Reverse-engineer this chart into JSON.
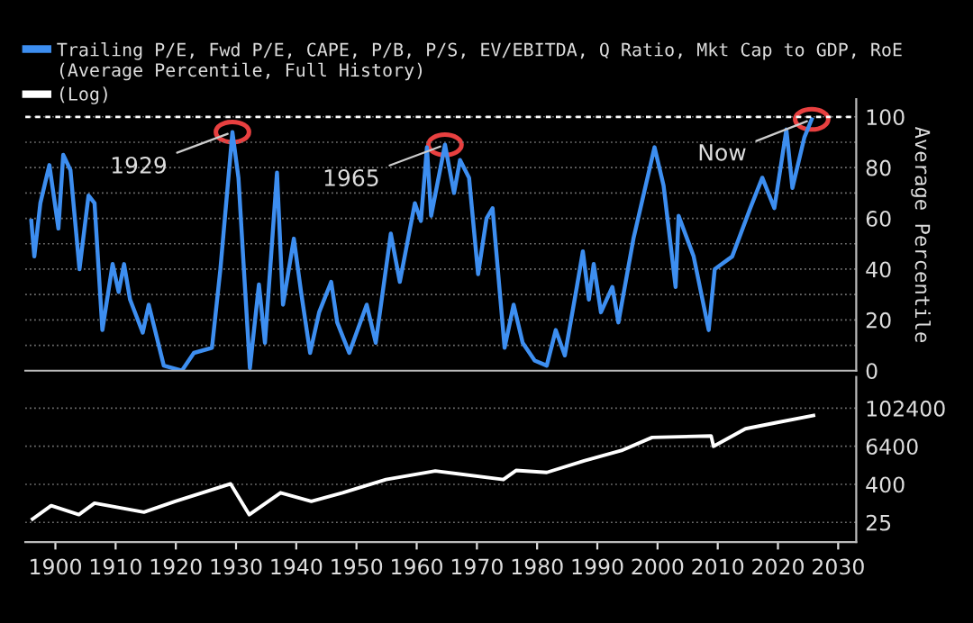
{
  "chart_data": [
    {
      "type": "line",
      "ylabel": "Average Percentile",
      "legend": "top left",
      "xlim": [
        1895,
        2033
      ],
      "ylim": [
        0,
        107
      ],
      "yticks": [
        0,
        {
          "value": 10,
          "label": null
        },
        20,
        {
          "value": 30,
          "label": null
        },
        40,
        {
          "value": 50,
          "label": null
        },
        60,
        {
          "value": 70,
          "label": null
        },
        80,
        {
          "value": 90,
          "label": null
        },
        100
      ],
      "grid": "y",
      "tick_labels": "y",
      "ref_lines": [
        {
          "axis": "y",
          "value": 100,
          "color": "#ffffff",
          "line_style": "dashed"
        }
      ],
      "annotations": [
        {
          "text": "1929",
          "x": 1929.4,
          "y": 94
        },
        {
          "text": "1965",
          "x": 1964.7,
          "y": 89
        },
        {
          "text": "Now",
          "x": 2025.6,
          "y": 99
        }
      ],
      "series": [
        {
          "name": "Trailing P/E, Fwd P/E, CAPE, P/B, P/S, EV/EBITDA, Q Ratio, Mkt Cap to GDP, RoE (Average Percentile, Full History)",
          "color": "#3d8ef0",
          "x": [
            1896,
            1896.5,
            1897.5,
            1899,
            1900.5,
            1901.3,
            1902.5,
            1904,
            1905.5,
            1906.5,
            1907.8,
            1909.5,
            1910.5,
            1911.4,
            1912.4,
            1914.5,
            1915.5,
            1918,
            1921,
            1923,
            1926,
            1927.4,
            1929.4,
            1930.4,
            1931.3,
            1932.3,
            1933.8,
            1934.8,
            1936.8,
            1937.8,
            1939.6,
            1940.8,
            1942.3,
            1943.8,
            1945.8,
            1946.8,
            1948.8,
            1951.7,
            1953.2,
            1955.7,
            1957.2,
            1959.7,
            1960.7,
            1961.7,
            1962.4,
            1964.7,
            1966.2,
            1967.2,
            1968.7,
            1970.2,
            1971.6,
            1972.6,
            1974.6,
            1976.1,
            1977.6,
            1979.6,
            1981.6,
            1983.1,
            1984.6,
            1986.6,
            1987.6,
            1988.6,
            1989.4,
            1990.6,
            1992.5,
            1993.5,
            1996,
            1999.5,
            2001,
            2003,
            2003.5,
            2006,
            2008.5,
            2009.5,
            2012.4,
            2015.4,
            2017.4,
            2019.4,
            2021.4,
            2022.4,
            2024.4,
            2025.6
          ],
          "values": [
            59,
            45,
            66,
            81,
            56,
            85,
            79,
            40,
            69,
            66,
            16,
            42,
            31,
            42,
            28,
            15,
            26,
            2,
            0,
            7,
            9,
            40,
            94,
            76,
            40,
            1,
            34,
            11,
            78,
            26,
            52,
            31,
            7,
            23,
            35,
            19,
            7,
            26,
            11,
            54,
            35,
            66,
            59,
            88,
            61,
            89,
            70,
            83,
            76,
            38,
            60,
            64,
            9,
            26,
            11,
            4,
            2,
            16,
            6,
            33,
            47,
            28,
            42,
            23,
            33,
            19,
            52,
            88,
            73,
            33,
            61,
            45,
            16,
            40,
            45,
            64,
            76,
            64,
            95,
            72,
            92,
            99
          ]
        }
      ]
    },
    {
      "type": "line",
      "log": "y",
      "xlim": [
        1895,
        2033
      ],
      "ylim": [
        6,
        1000000
      ],
      "xticks": [
        1900,
        1910,
        1920,
        1930,
        1940,
        1950,
        1960,
        1970,
        1980,
        1990,
        2000,
        2010,
        2020,
        2030
      ],
      "yticks": [
        25,
        400,
        6400,
        102400
      ],
      "grid": "y",
      "series": [
        {
          "name": "(Log)",
          "color": "#ffffff",
          "x": [
            1896.2,
            1899.3,
            1903.9,
            1906.5,
            1914.7,
            1919.9,
            1929.1,
            1932.2,
            1937.4,
            1942.5,
            1947.7,
            1954.9,
            1963.1,
            1974.4,
            1976.5,
            1981.6,
            1987.8,
            1994,
            1999.1,
            2008.9,
            2009.3,
            2014.6,
            2019.7,
            2025.9
          ],
          "values": [
            32,
            85,
            44,
            102,
            53,
            116,
            414,
            44,
            217,
            116,
            217,
            566,
            1063,
            566,
            1100,
            952,
            2230,
            4680,
            12200,
            13600,
            6400,
            22900,
            35700,
            60000
          ]
        }
      ]
    }
  ]
}
